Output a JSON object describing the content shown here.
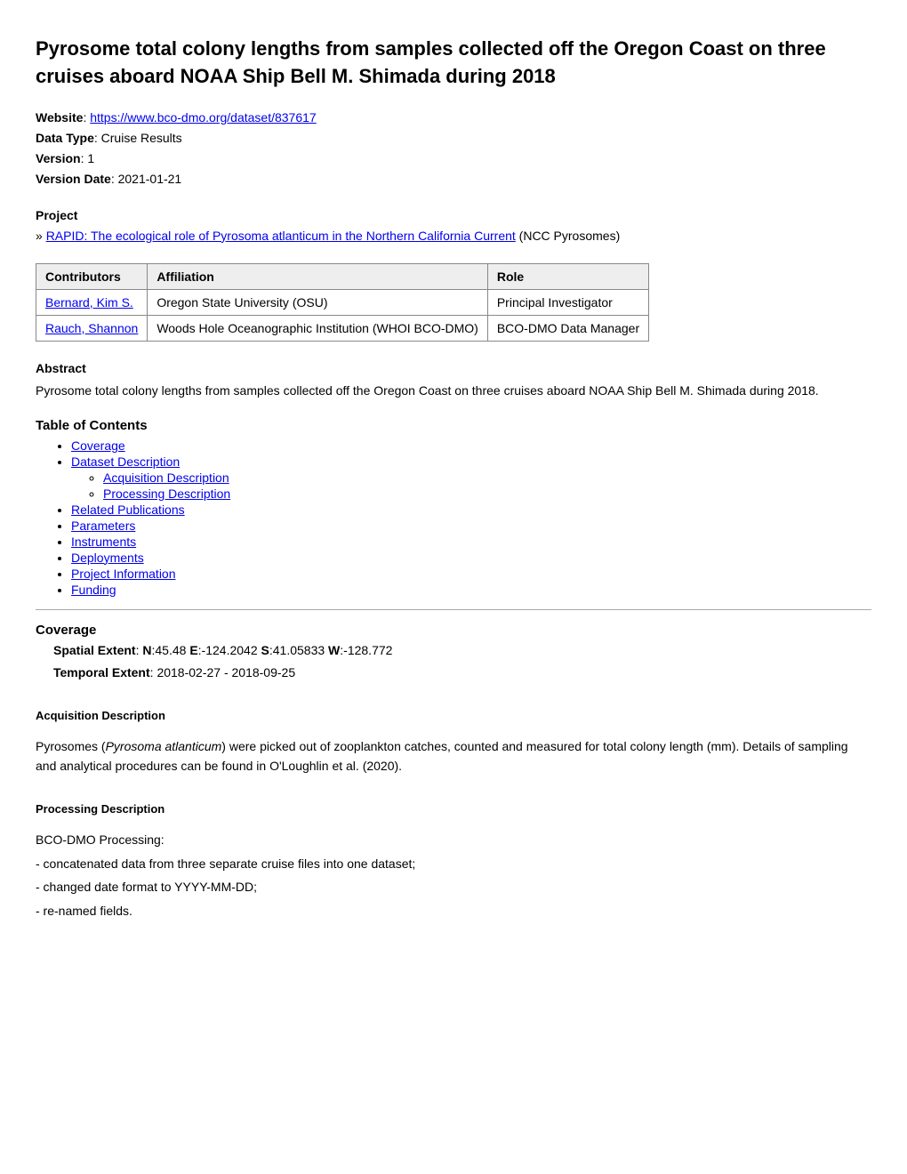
{
  "title": "Pyrosome total colony lengths from samples collected off the Oregon Coast on three cruises aboard NOAA Ship Bell M. Shimada during 2018",
  "meta": {
    "website_label": "Website",
    "website_url": "https://www.bco-dmo.org/dataset/837617",
    "data_type_label": "Data Type",
    "data_type": "Cruise Results",
    "version_label": "Version",
    "version": "1",
    "version_date_label": "Version Date",
    "version_date": "2021-01-21"
  },
  "project": {
    "heading": "Project",
    "bullet": "»",
    "link_text": "RAPID: The ecological role of Pyrosoma atlanticum in the Northern California Current",
    "suffix": " (NCC Pyrosomes)"
  },
  "contributors": {
    "columns": [
      "Contributors",
      "Affiliation",
      "Role"
    ],
    "rows": [
      {
        "name": "Bernard, Kim S.",
        "affiliation": "Oregon State University (OSU)",
        "role": "Principal Investigator"
      },
      {
        "name": "Rauch, Shannon",
        "affiliation": "Woods Hole Oceanographic Institution (WHOI BCO-DMO)",
        "role": "BCO-DMO Data Manager"
      }
    ]
  },
  "abstract": {
    "heading": "Abstract",
    "text": "Pyrosome total colony lengths from samples collected off the Oregon Coast on three cruises aboard NOAA Ship Bell M. Shimada during 2018."
  },
  "toc": {
    "heading": "Table of Contents",
    "items": {
      "coverage": "Coverage",
      "dataset_desc": "Dataset Description",
      "acquisition_desc": "Acquisition Description",
      "processing_desc": "Processing Description",
      "related_pubs": "Related Publications",
      "parameters": "Parameters",
      "instruments": "Instruments",
      "deployments": "Deployments",
      "project_info": "Project Information",
      "funding": "Funding"
    }
  },
  "coverage": {
    "heading": "Coverage",
    "spatial_label": "Spatial Extent",
    "n_label": "N",
    "n": ":45.48",
    "e_label": "E",
    "e": ":-124.2042",
    "s_label": "S",
    "s": ":41.05833",
    "w_label": "W",
    "w": ":-128.772",
    "temporal_label": "Temporal Extent",
    "temporal": "2018-02-27 - 2018-09-25"
  },
  "acquisition": {
    "heading": "Acquisition Description",
    "text_pre": "Pyrosomes (",
    "text_italic": "Pyrosoma atlanticum",
    "text_post": ") were picked out of zooplankton catches, counted and measured for total colony length (mm). Details of sampling and analytical procedures can be found in O'Loughlin et al. (2020)."
  },
  "processing": {
    "heading": "Processing Description",
    "line1": "BCO-DMO Processing:",
    "line2": "- concatenated data from three separate cruise files into one dataset;",
    "line3": "- changed date format to YYYY-MM-DD;",
    "line4": "- re-named fields."
  }
}
